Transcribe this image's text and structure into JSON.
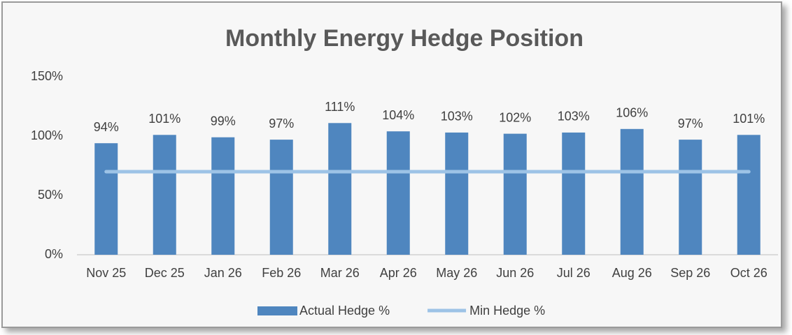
{
  "chart_data": {
    "type": "combo",
    "title": "Monthly Energy Hedge Position",
    "categories": [
      "Nov 25",
      "Dec 25",
      "Jan 26",
      "Feb 26",
      "Mar 26",
      "Apr 26",
      "May 26",
      "Jun 26",
      "Jul 26",
      "Aug 26",
      "Sep 26",
      "Oct 26"
    ],
    "series": [
      {
        "name": "Actual Hedge %",
        "type": "bar",
        "color": "#4f86bf",
        "values": [
          94,
          101,
          99,
          97,
          111,
          104,
          103,
          102,
          103,
          106,
          97,
          101
        ],
        "value_labels": [
          "94%",
          "101%",
          "99%",
          "97%",
          "111%",
          "104%",
          "103%",
          "102%",
          "103%",
          "106%",
          "97%",
          "101%"
        ]
      },
      {
        "name": "Min Hedge %",
        "type": "line",
        "color": "#9dc3e6",
        "values": [
          70,
          70,
          70,
          70,
          70,
          70,
          70,
          70,
          70,
          70,
          70,
          70
        ]
      }
    ],
    "ylim": [
      0,
      150
    ],
    "yticks": [
      {
        "value": 0,
        "label": "0%"
      },
      {
        "value": 50,
        "label": "50%"
      },
      {
        "value": 100,
        "label": "100%"
      },
      {
        "value": 150,
        "label": "150%"
      }
    ],
    "grid": false,
    "legend": "bottom"
  }
}
